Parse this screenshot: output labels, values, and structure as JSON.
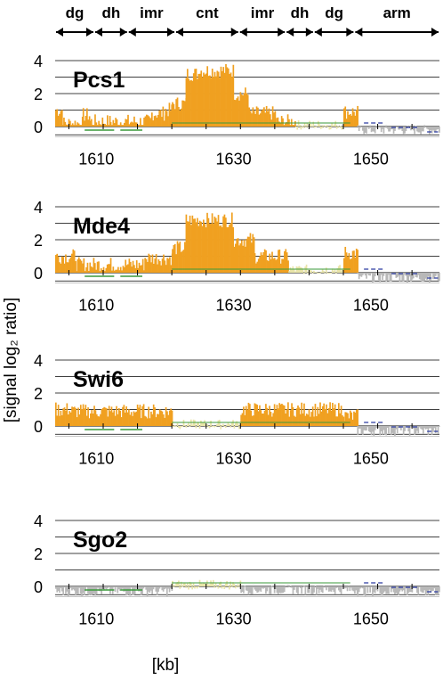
{
  "figure": {
    "ylabel": "[signal log₂ ratio]",
    "xlabel": "[kb]"
  },
  "regions": [
    {
      "label": "dg",
      "start": 1604.0,
      "end": 1609.7
    },
    {
      "label": "dh",
      "start": 1609.7,
      "end": 1614.6
    },
    {
      "label": "imr",
      "start": 1614.6,
      "end": 1621.5
    },
    {
      "label": "cnt",
      "start": 1621.5,
      "end": 1630.8
    },
    {
      "label": "imr",
      "start": 1630.8,
      "end": 1637.6
    },
    {
      "label": "dh",
      "start": 1637.6,
      "end": 1641.7
    },
    {
      "label": "dg",
      "start": 1641.7,
      "end": 1647.6
    },
    {
      "label": "arm",
      "start": 1647.6,
      "end": 1660.0
    }
  ],
  "colors": {
    "enriched": "#f0a020",
    "weak": "#e8e4a8",
    "background": "#b8b8b8",
    "grid": "#000000",
    "annotation_green": "#3a9a3a",
    "annotation_blue": "#2a3aa0"
  },
  "chart_data": [
    {
      "type": "bar",
      "title": "Pcs1",
      "xlim": [
        1604,
        1660
      ],
      "ylim": [
        -1,
        4.5
      ],
      "yticks": [
        0,
        2,
        4
      ],
      "xticks": [
        1610,
        1630,
        1650
      ],
      "profile": [
        {
          "from": 1604,
          "to": 1605,
          "mean": 1.0,
          "class": "enriched"
        },
        {
          "from": 1605,
          "to": 1608,
          "mean": 0.2,
          "class": "enriched"
        },
        {
          "from": 1608,
          "to": 1609,
          "mean": 0.7,
          "class": "enriched"
        },
        {
          "from": 1609,
          "to": 1612,
          "mean": 0.3,
          "class": "enriched"
        },
        {
          "from": 1612,
          "to": 1618,
          "mean": 0.3,
          "class": "enriched"
        },
        {
          "from": 1618,
          "to": 1620,
          "mean": 0.8,
          "class": "enriched"
        },
        {
          "from": 1620,
          "to": 1621,
          "mean": 1.0,
          "class": "enriched"
        },
        {
          "from": 1621,
          "to": 1623,
          "mean": 1.4,
          "class": "enriched"
        },
        {
          "from": 1623,
          "to": 1625,
          "mean": 3.2,
          "class": "enriched"
        },
        {
          "from": 1625,
          "to": 1630,
          "mean": 3.4,
          "class": "enriched"
        },
        {
          "from": 1630,
          "to": 1632,
          "mean": 2.0,
          "class": "enriched"
        },
        {
          "from": 1632,
          "to": 1636,
          "mean": 0.8,
          "class": "enriched"
        },
        {
          "from": 1636,
          "to": 1639,
          "mean": 0.3,
          "class": "enriched"
        },
        {
          "from": 1639,
          "to": 1646,
          "mean": 0.1,
          "class": "weak"
        },
        {
          "from": 1646,
          "to": 1648,
          "mean": 0.9,
          "class": "enriched"
        },
        {
          "from": 1648,
          "to": 1660,
          "mean": -0.2,
          "class": "background"
        }
      ]
    },
    {
      "type": "bar",
      "title": "Mde4",
      "xlim": [
        1604,
        1660
      ],
      "ylim": [
        -1,
        4.5
      ],
      "yticks": [
        0,
        2,
        4
      ],
      "xticks": [
        1610,
        1630,
        1650
      ],
      "profile": [
        {
          "from": 1604,
          "to": 1607,
          "mean": 1.0,
          "class": "enriched"
        },
        {
          "from": 1607,
          "to": 1612,
          "mean": 0.5,
          "class": "enriched"
        },
        {
          "from": 1612,
          "to": 1617,
          "mean": 0.5,
          "class": "enriched"
        },
        {
          "from": 1617,
          "to": 1621,
          "mean": 0.9,
          "class": "enriched"
        },
        {
          "from": 1621,
          "to": 1623,
          "mean": 1.5,
          "class": "enriched"
        },
        {
          "from": 1623,
          "to": 1630,
          "mean": 3.2,
          "class": "enriched"
        },
        {
          "from": 1630,
          "to": 1633,
          "mean": 2.0,
          "class": "enriched"
        },
        {
          "from": 1633,
          "to": 1638,
          "mean": 1.0,
          "class": "enriched"
        },
        {
          "from": 1638,
          "to": 1646,
          "mean": 0.2,
          "class": "weak"
        },
        {
          "from": 1646,
          "to": 1648,
          "mean": 1.2,
          "class": "enriched"
        },
        {
          "from": 1648,
          "to": 1660,
          "mean": -0.3,
          "class": "background"
        }
      ]
    },
    {
      "type": "bar",
      "title": "Swi6",
      "xlim": [
        1604,
        1660
      ],
      "ylim": [
        -1,
        4.5
      ],
      "yticks": [
        0,
        2,
        4
      ],
      "xticks": [
        1610,
        1630,
        1650
      ],
      "profile": [
        {
          "from": 1604,
          "to": 1606,
          "mean": 1.0,
          "class": "enriched"
        },
        {
          "from": 1606,
          "to": 1621,
          "mean": 0.9,
          "class": "enriched"
        },
        {
          "from": 1621,
          "to": 1631,
          "mean": 0.1,
          "class": "weak"
        },
        {
          "from": 1631,
          "to": 1646,
          "mean": 1.0,
          "class": "enriched"
        },
        {
          "from": 1646,
          "to": 1648,
          "mean": 0.6,
          "class": "enriched"
        },
        {
          "from": 1648,
          "to": 1660,
          "mean": -0.3,
          "class": "background"
        }
      ]
    },
    {
      "type": "bar",
      "title": "Sgo2",
      "xlim": [
        1604,
        1660
      ],
      "ylim": [
        -1,
        4.5
      ],
      "yticks": [
        0,
        2,
        4
      ],
      "xticks": [
        1610,
        1630,
        1650
      ],
      "profile": [
        {
          "from": 1604,
          "to": 1621,
          "mean": -0.3,
          "class": "background"
        },
        {
          "from": 1621,
          "to": 1631,
          "mean": 0.1,
          "class": "weak"
        },
        {
          "from": 1631,
          "to": 1648,
          "mean": -0.2,
          "class": "background"
        },
        {
          "from": 1648,
          "to": 1660,
          "mean": -0.3,
          "class": "background"
        }
      ]
    }
  ]
}
